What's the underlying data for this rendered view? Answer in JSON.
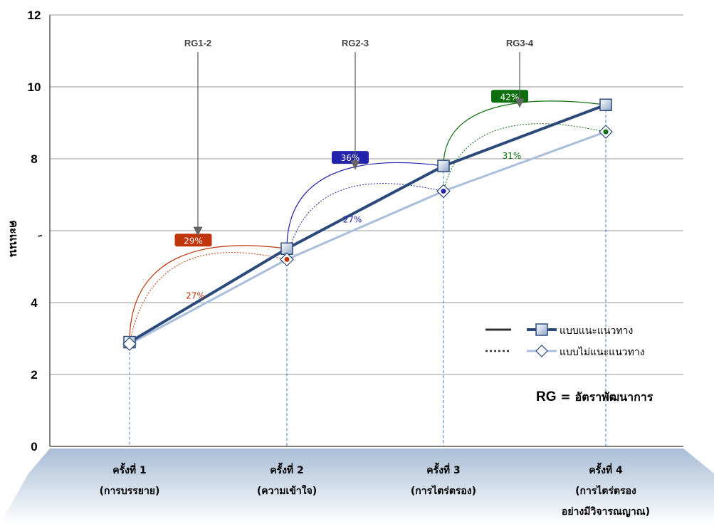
{
  "chart_data": {
    "type": "line",
    "ylabel": "คะแนน",
    "ylim": [
      0,
      12
    ],
    "yticks": [
      "0",
      "2",
      "4",
      "",
      "8",
      "10",
      "12"
    ],
    "y_stray_mark": "ِ",
    "grid": true,
    "categories": [
      [
        "ครั้งที่ 1",
        "(การบรรยาย)"
      ],
      [
        "ครั้งที่ 2",
        "(ความเข้าใจ)"
      ],
      [
        "ครั้งที่ 3",
        "(การไตร่ตรอง)"
      ],
      [
        "ครั้งที่ 4",
        "(การไตร่ตรอง",
        "อย่างมีวิจารณญาณ)"
      ]
    ],
    "series": [
      {
        "name": "แบบแนะแนวทาง",
        "values": [
          2.9,
          5.5,
          7.8,
          9.5
        ],
        "color": "#2b4a7a",
        "style": "solid",
        "marker": "square"
      },
      {
        "name": "แบบไม่แนะแนวทาง",
        "values": [
          2.85,
          5.2,
          7.1,
          8.75
        ],
        "color": "#a8bedb",
        "style": "dotted",
        "marker": "diamond"
      }
    ],
    "growth_rates": [
      {
        "label": "RG1-2",
        "guided": "29%",
        "unguided": "27%",
        "color": "#c0360a"
      },
      {
        "label": "RG2-3",
        "guided": "36%",
        "unguided": "27%",
        "color": "#2222aa"
      },
      {
        "label": "RG3-4",
        "guided": "42%",
        "unguided": "31%",
        "color": "#0d6e0d"
      }
    ],
    "legend_position": "right",
    "note": {
      "key": "RG",
      "eq": " = ",
      "desc": "อัตราพัฒนาการ"
    }
  }
}
